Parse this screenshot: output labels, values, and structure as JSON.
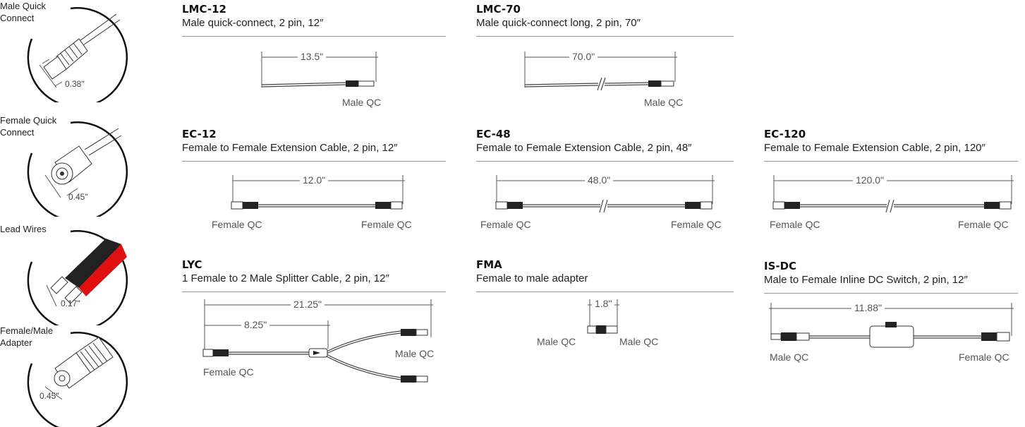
{
  "legend": [
    {
      "title_lines": [
        "Male Quick",
        "Connect"
      ],
      "measurement": "0.38\"",
      "icon": "male-quick-connect-icon"
    },
    {
      "title_lines": [
        "Female Quick",
        "Connect"
      ],
      "measurement": "0.45\"",
      "icon": "female-quick-connect-icon"
    },
    {
      "title_lines": [
        "Lead Wires"
      ],
      "measurement": "0.17\"",
      "icon": "lead-wires-icon"
    },
    {
      "title_lines": [
        "Female/Male",
        "Adapter"
      ],
      "measurement": "0.45\"",
      "icon": "female-male-adapter-icon"
    }
  ],
  "products": {
    "lmc12": {
      "code": "LMC-12",
      "desc": "Male quick-connect, 2 pin, 12″",
      "dim": "13.5\"",
      "label_right": "Male QC"
    },
    "lmc70": {
      "code": "LMC-70",
      "desc": "Male quick-connect long, 2 pin, 70″",
      "dim": "70.0\"",
      "label_right": "Male QC"
    },
    "ec12": {
      "code": "EC-12",
      "desc": "Female to Female Extension Cable, 2 pin, 12″",
      "dim": "12.0\"",
      "label_left": "Female QC",
      "label_right": "Female QC"
    },
    "ec48": {
      "code": "EC-48",
      "desc": "Female to Female Extension Cable, 2 pin, 48″",
      "dim": "48.0\"",
      "label_left": "Female QC",
      "label_right": "Female QC"
    },
    "ec120": {
      "code": "EC-120",
      "desc": "Female to Female Extension Cable, 2 pin, 120″",
      "dim": "120.0\"",
      "label_left": "Female QC",
      "label_right": "Female QC"
    },
    "lyc": {
      "code": "LYC",
      "desc": "1 Female to 2 Male Splitter Cable, 2 pin, 12″",
      "dim": "21.25\"",
      "dim2": "8.25\"",
      "label_left": "Female QC",
      "label_right": "Male QC"
    },
    "fma": {
      "code": "FMA",
      "desc": "Female to male adapter",
      "dim": "1.8\"",
      "label_left": "Male QC",
      "label_right": "Male QC"
    },
    "isdc": {
      "code": "IS-DC",
      "desc": "Male to Female Inline DC Switch, 2 pin, 12″",
      "dim": "11.88\"",
      "label_left": "Male QC",
      "label_right": "Female QC"
    }
  }
}
